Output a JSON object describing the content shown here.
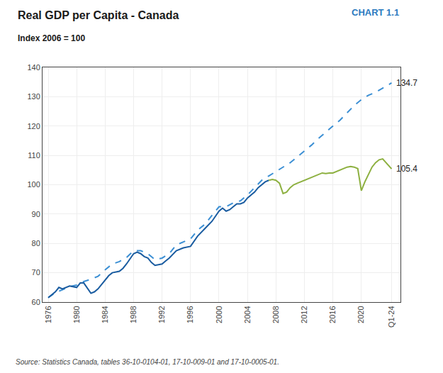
{
  "chart_data": {
    "type": "line",
    "title": "Real GDP per Capita - Canada",
    "subtitle": "Index 2006 = 100",
    "chart_label": "CHART 1.1",
    "source_text": "Source: Statistics Canada, tables 36-10-0104-01, 17-10-009-01 and 17-10-0005-01.",
    "xlim": [
      1975.2,
      2025.5
    ],
    "xticks": [
      1976,
      1980,
      1984,
      1988,
      1992,
      1996,
      2000,
      2004,
      2008,
      2012,
      2016,
      2020,
      {
        "value": 2024.25,
        "label": "Q1-24"
      }
    ],
    "ylim": [
      60,
      140
    ],
    "yticks": [
      60,
      70,
      80,
      90,
      100,
      110,
      120,
      130,
      140
    ],
    "grid": true,
    "series": [
      {
        "color": "#3b8fd4",
        "line_style": "dashed",
        "x": [
          1976,
          1977,
          1978,
          1979,
          1980,
          1981,
          1982,
          1983,
          1984,
          1985,
          1986,
          1987,
          1988,
          1989,
          1990,
          1991,
          1992,
          1993,
          1994,
          1995,
          1996,
          1997,
          1998,
          1999,
          2000,
          2001,
          2002,
          2003,
          2004,
          2005,
          2006,
          2007,
          2008,
          2009,
          2010,
          2011,
          2012,
          2013,
          2014,
          2015,
          2016,
          2017,
          2018,
          2019,
          2020,
          2021,
          2022,
          2023,
          2024.25
        ],
        "values": [
          61.5,
          63.2,
          64.2,
          65.3,
          65.8,
          67.0,
          67.8,
          68.8,
          71.0,
          73.0,
          73.8,
          75.2,
          77.5,
          77.5,
          76.5,
          74.5,
          75.0,
          76.5,
          79.5,
          80.5,
          81.5,
          84.5,
          86.5,
          89.5,
          92.5,
          92.5,
          93.8,
          94.5,
          96.5,
          99.0,
          101.5,
          103.0,
          104.5,
          105.8,
          107.5,
          109.5,
          111.5,
          113.5,
          115.8,
          118.0,
          120.0,
          122.0,
          124.5,
          127.0,
          129.0,
          130.5,
          131.5,
          133.0,
          134.7
        ]
      },
      {
        "color": "#1a5ca0",
        "line_style": "solid",
        "x": [
          1976,
          1977,
          1977.5,
          1978,
          1979,
          1980,
          1980.5,
          1981,
          1982,
          1982.5,
          1983,
          1984,
          1984.5,
          1985,
          1986,
          1986.5,
          1987,
          1988,
          1988.5,
          1989,
          1989.5,
          1990,
          1990.5,
          1991,
          1991.5,
          1992,
          1992.5,
          1993,
          1994,
          1995,
          1996,
          1997,
          1998,
          1999,
          2000,
          2000.5,
          2001,
          2001.5,
          2002,
          2002.5,
          2003,
          2003.5,
          2004,
          2004.5,
          2005,
          2005.5,
          2006,
          2006.5,
          2007
        ],
        "values": [
          61.5,
          63.5,
          65.0,
          64.5,
          65.5,
          65.0,
          66.5,
          66.5,
          63.0,
          63.5,
          64.5,
          67.5,
          69.0,
          70.0,
          70.5,
          71.5,
          73.0,
          76.5,
          77.0,
          76.5,
          75.5,
          75.0,
          73.5,
          72.5,
          72.8,
          73.0,
          74.0,
          75.0,
          77.5,
          78.5,
          79.0,
          82.5,
          85.0,
          87.5,
          91.0,
          92.0,
          91.0,
          91.5,
          92.5,
          93.5,
          93.5,
          94.0,
          95.5,
          96.5,
          97.5,
          99.0,
          100.0,
          101.0,
          101.5
        ]
      },
      {
        "color": "#8db040",
        "line_style": "solid",
        "x": [
          2007,
          2007.5,
          2008,
          2008.5,
          2009,
          2009.5,
          2010,
          2010.5,
          2011,
          2011.5,
          2012,
          2012.5,
          2013,
          2013.5,
          2014,
          2014.5,
          2015,
          2015.5,
          2016,
          2016.5,
          2017,
          2017.5,
          2018,
          2018.5,
          2019,
          2019.5,
          2020,
          2020.5,
          2021,
          2021.5,
          2022,
          2022.5,
          2023,
          2023.5,
          2024.25
        ],
        "values": [
          101.5,
          101.8,
          101.5,
          100.5,
          97.0,
          97.5,
          99.0,
          100.0,
          100.5,
          101.0,
          101.5,
          102.0,
          102.5,
          103.0,
          103.5,
          104.0,
          103.8,
          104.0,
          104.0,
          104.5,
          105.0,
          105.5,
          106.0,
          106.2,
          106.0,
          105.5,
          98.0,
          101.0,
          103.5,
          106.0,
          107.5,
          108.5,
          108.8,
          107.5,
          105.4
        ]
      }
    ],
    "annotations": [
      {
        "text": "134.7",
        "x": 2024.25,
        "y": 134.7
      },
      {
        "text": "105.4",
        "x": 2024.25,
        "y": 105.4
      }
    ]
  }
}
